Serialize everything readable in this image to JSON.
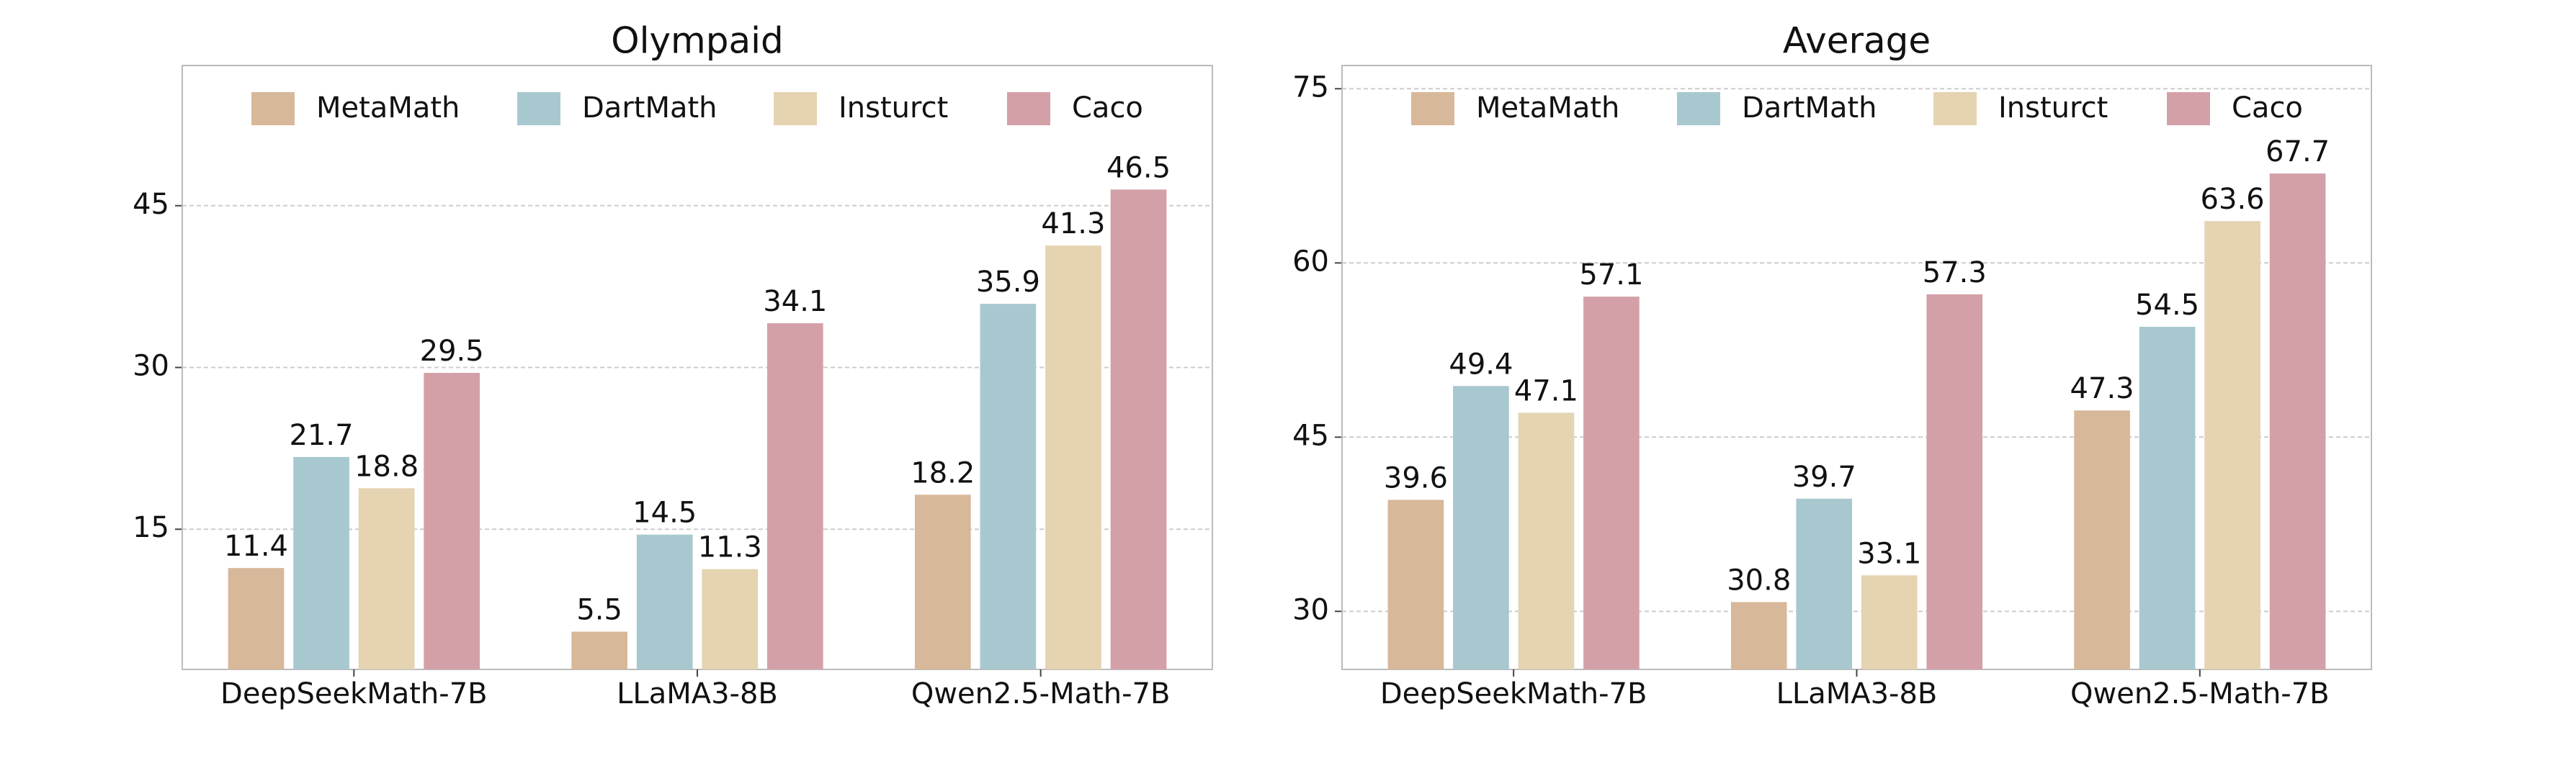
{
  "chart_data": [
    {
      "type": "bar",
      "title": "Olympaid",
      "categories": [
        "DeepSeekMath-7B",
        "LLaMA3-8B",
        "Qwen2.5-Math-7B"
      ],
      "series": [
        {
          "name": "MetaMath",
          "color": "#d8b89a",
          "values": [
            11.4,
            5.5,
            18.2
          ]
        },
        {
          "name": "DartMath",
          "color": "#a8c8d0",
          "values": [
            21.7,
            14.5,
            35.9
          ]
        },
        {
          "name": "Insturct",
          "color": "#e5d3b1",
          "values": [
            18.8,
            11.3,
            41.3
          ]
        },
        {
          "name": "Caco",
          "color": "#d4a0a8",
          "values": [
            29.5,
            34.1,
            46.5
          ]
        }
      ],
      "ylim": [
        2,
        58
      ],
      "yticks": [
        15,
        30,
        45
      ],
      "grid": true,
      "legend": "upper center"
    },
    {
      "type": "bar",
      "title": "Average",
      "categories": [
        "DeepSeekMath-7B",
        "LLaMA3-8B",
        "Qwen2.5-Math-7B"
      ],
      "series": [
        {
          "name": "MetaMath",
          "color": "#d8b89a",
          "values": [
            39.6,
            30.8,
            47.3
          ]
        },
        {
          "name": "DartMath",
          "color": "#a8c8d0",
          "values": [
            49.4,
            39.7,
            54.5
          ]
        },
        {
          "name": "Insturct",
          "color": "#e5d3b1",
          "values": [
            47.1,
            33.1,
            63.6
          ]
        },
        {
          "name": "Caco",
          "color": "#d4a0a8",
          "values": [
            57.1,
            57.3,
            67.7
          ]
        }
      ],
      "ylim": [
        25,
        77
      ],
      "yticks": [
        30,
        45,
        60,
        75
      ],
      "grid": true,
      "legend": "upper center"
    }
  ]
}
